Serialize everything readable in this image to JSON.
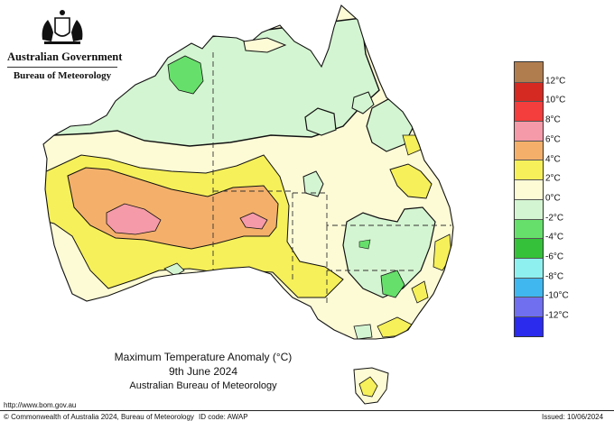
{
  "branding": {
    "government": "Australian Government",
    "bureau": "Bureau of Meteorology",
    "crest_icon": "coat-of-arms-icon"
  },
  "map": {
    "title": "Maximum Temperature Anomaly (°C)",
    "date": "9th June 2024",
    "source": "Australian Bureau of Meteorology",
    "colors": {
      "ocean": "#ffffff",
      "anomaly_0_2": "#fdfbd6",
      "anomaly_2_4": "#f6f05a",
      "anomaly_4_6": "#f4b06a",
      "anomaly_6_8": "#f59aa8",
      "anomaly_neg2_0": "#d4f5d1",
      "anomaly_neg4_neg2": "#66e06b"
    }
  },
  "legend": {
    "labels": [
      "12°C",
      "10°C",
      "8°C",
      "6°C",
      "4°C",
      "2°C",
      "0°C",
      "-2°C",
      "-4°C",
      "-6°C",
      "-8°C",
      "-10°C",
      "-12°C"
    ],
    "colors": [
      "#b07d4f",
      "#d42a22",
      "#f43d3d",
      "#f59aa8",
      "#f4b06a",
      "#f6f05a",
      "#fdfbd6",
      "#d4f5d1",
      "#66e06b",
      "#35c23a",
      "#8ff0f0",
      "#40b7ef",
      "#6f6ff0",
      "#2b2bee"
    ]
  },
  "footer": {
    "url": "http://www.bom.gov.au",
    "copyright": "© Commonwealth of Australia 2024, Bureau of Meteorology",
    "id_code": "ID code: AWAP",
    "issued": "Issued: 10/06/2024"
  }
}
